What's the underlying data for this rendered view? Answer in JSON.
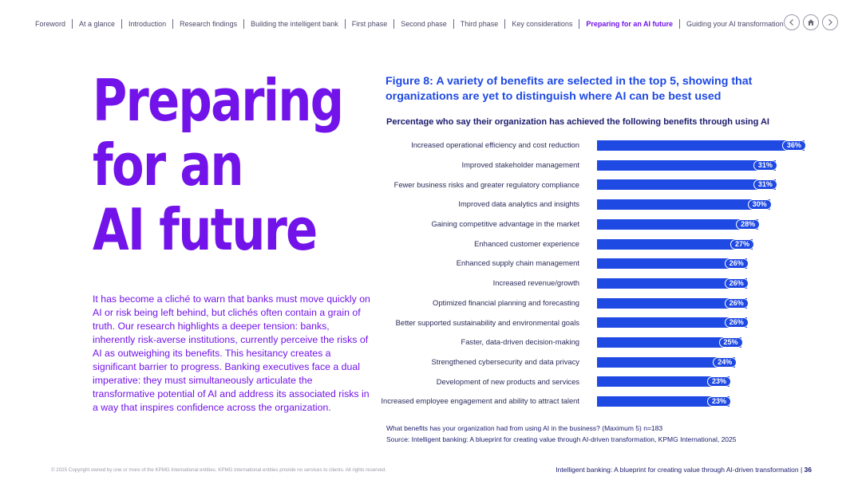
{
  "nav": {
    "items": [
      {
        "label": "Foreword",
        "active": false
      },
      {
        "label": "At a glance",
        "active": false
      },
      {
        "label": "Introduction",
        "active": false
      },
      {
        "label": "Research findings",
        "active": false
      },
      {
        "label": "Building the intelligent bank",
        "active": false
      },
      {
        "label": "First phase",
        "active": false
      },
      {
        "label": "Second phase",
        "active": false
      },
      {
        "label": "Third phase",
        "active": false
      },
      {
        "label": "Key considerations",
        "active": false
      },
      {
        "label": "Preparing for an AI future",
        "active": true
      },
      {
        "label": "Guiding your AI transformation",
        "active": false
      }
    ],
    "buttons": {
      "prev_icon": "chevron-left-icon",
      "home_icon": "home-icon",
      "next_icon": "chevron-right-icon"
    }
  },
  "page": {
    "title_lines": [
      "Preparing",
      "for an",
      "AI future"
    ],
    "intro": "It has become a cliché to warn that banks must move quickly on AI or risk being left behind, but clichés often contain a grain of truth. Our research highlights a deeper tension: banks, inherently risk-averse institutions, currently perceive the risks of AI as outweighing its benefits. This hesitancy creates a significant barrier to progress. Banking executives face a dual imperative: they must simultaneously articulate the transformative potential of AI and address its associated risks in a way that inspires confidence across the organization."
  },
  "colors": {
    "accent_purple": "#7213ea",
    "bar_blue": "#1e49e2",
    "navy": "#1b1b6e"
  },
  "chart_data": {
    "type": "bar",
    "orientation": "horizontal",
    "title": "Figure 8: A variety of benefits are selected in the top 5, showing that organizations are yet to distinguish where AI can be best used",
    "subtitle": "Percentage who say their organization has achieved the following benefits through using AI",
    "categories": [
      "Increased operational efficiency and cost reduction",
      "Improved stakeholder management",
      "Fewer business risks and greater regulatory compliance",
      "Improved data analytics and insights",
      "Gaining competitive advantage in the market",
      "Enhanced customer experience",
      "Enhanced supply chain management",
      "Increased revenue/growth",
      "Optimized financial planning and forecasting",
      "Better supported sustainability and environmental goals",
      "Faster, data-driven decision-making",
      "Strengthened cybersecurity and data privacy",
      "Development of new products and services",
      "Increased employee engagement and ability to attract talent"
    ],
    "values": [
      36,
      31,
      31,
      30,
      28,
      27,
      26,
      26,
      26,
      26,
      25,
      24,
      23,
      23
    ],
    "value_labels": [
      "36%",
      "31%",
      "31%",
      "30%",
      "28%",
      "27%",
      "26%",
      "26%",
      "26%",
      "26%",
      "25%",
      "24%",
      "23%",
      "23%"
    ],
    "xlim": [
      0,
      40
    ],
    "grid": false,
    "legend": "none",
    "question_note": "What benefits has your organization had from using AI in the business? (Maximum 5) n=183",
    "source": "Source: Intelligent banking: A blueprint for creating value through AI-driven transformation, KPMG International, 2025"
  },
  "footer": {
    "copyright": "© 2025 Copyright owned by one or more of the KPMG International entities. KPMG International entities provide no services to clients. All rights reserved.",
    "doc_title": "Intelligent banking: A blueprint for creating value through AI-driven transformation",
    "page_number": "36"
  }
}
